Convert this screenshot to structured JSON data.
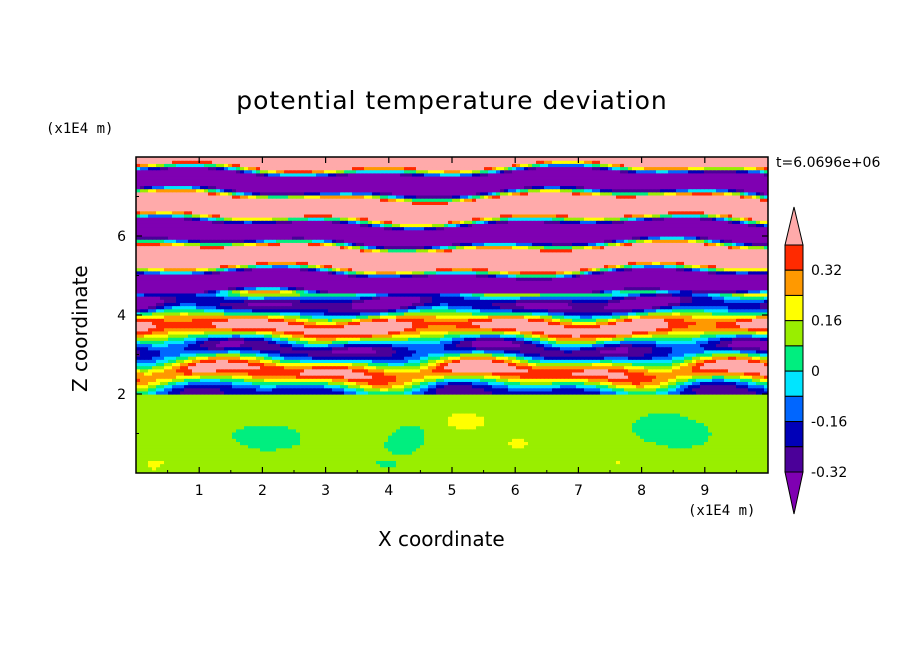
{
  "chart_data": {
    "type": "heatmap",
    "title": "potential temperature deviation",
    "xlabel": "X coordinate",
    "ylabel": "Z coordinate",
    "x_unit_label": "(x1E4 m)",
    "y_unit_label": "(x1E4 m)",
    "time_label": "t=6.0696e+06",
    "xlim": [
      0,
      10
    ],
    "ylim": [
      0,
      8
    ],
    "x_ticks": [
      1,
      2,
      3,
      4,
      5,
      6,
      7,
      8,
      9
    ],
    "y_ticks": [
      2,
      4,
      6
    ],
    "colorbar": {
      "levels": [
        -0.4,
        -0.32,
        -0.24,
        -0.16,
        -0.08,
        0,
        0.08,
        0.16,
        0.24,
        0.32,
        0.4
      ],
      "tick_labels": [
        "0.32",
        "0.16",
        "0",
        "-0.16",
        "-0.32"
      ],
      "tick_values": [
        0.32,
        0.16,
        0,
        -0.16,
        -0.32
      ],
      "colors": [
        "#7f00b2",
        "#4b0099",
        "#0000b8",
        "#0066ff",
        "#00e5ff",
        "#00ee7f",
        "#99ee00",
        "#ffff00",
        "#ff9900",
        "#ff2a00",
        "#ffaaaa"
      ]
    }
  }
}
